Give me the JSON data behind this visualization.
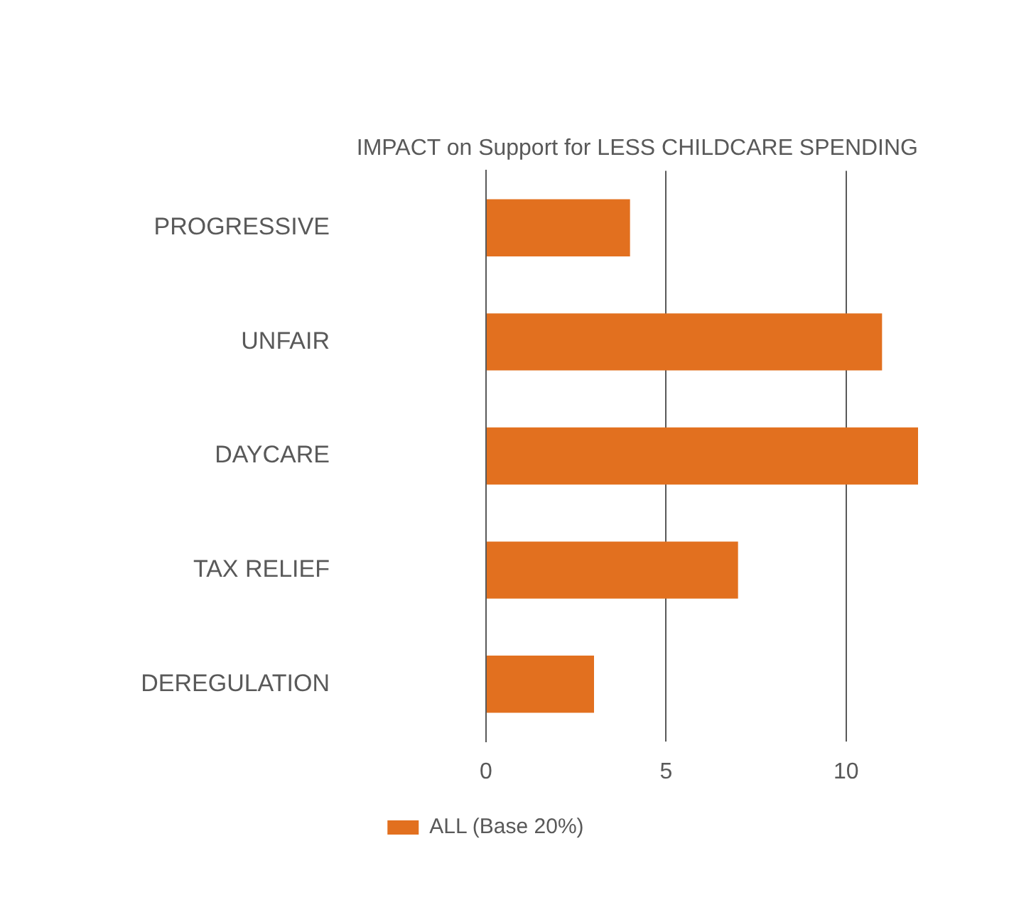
{
  "chart_data": {
    "type": "bar",
    "orientation": "horizontal",
    "title": "IMPACT on Support for LESS CHILDCARE SPENDING",
    "categories": [
      "PROGRESSIVE",
      "UNFAIR",
      "DAYCARE",
      "TAX RELIEF",
      "DEREGULATION"
    ],
    "series": [
      {
        "name": "ALL (Base 20%)",
        "color": "#e2701f",
        "values": [
          4,
          11,
          12,
          7,
          3
        ]
      }
    ],
    "xlim": [
      0,
      12
    ],
    "xticks": [
      0,
      5,
      10
    ],
    "grid": "x",
    "legend": "bottom"
  }
}
